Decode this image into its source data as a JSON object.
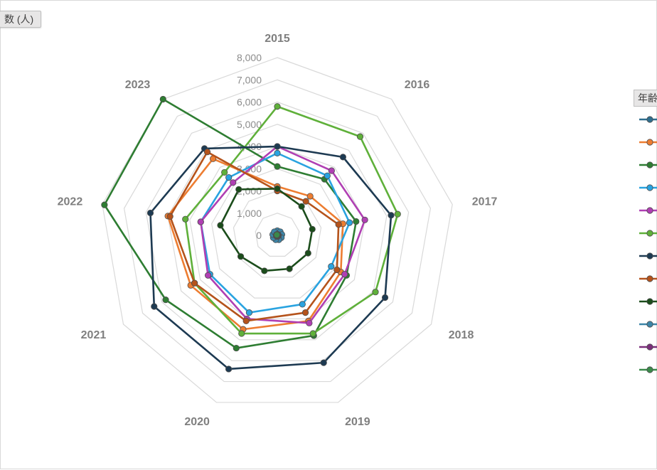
{
  "header": {
    "field_button_label": "数 (人)"
  },
  "legend": {
    "title": "年齢",
    "series_colors": [
      "#2e6e8e",
      "#ed7d31",
      "#2e7d32",
      "#29a3e0",
      "#b03fb3",
      "#5fb03a",
      "#1d3a52",
      "#b5531b",
      "#1b4d1b",
      "#3d85a8",
      "#7a2e7a",
      "#3a8a4a"
    ]
  },
  "chart_data": {
    "type": "radar",
    "categories": [
      "2015",
      "2016",
      "2017",
      "2018",
      "2019",
      "2020",
      "2021",
      "2022",
      "2023"
    ],
    "rlim": [
      0,
      8000
    ],
    "radial_ticks": [
      0,
      1000,
      2000,
      3000,
      4000,
      5000,
      6000,
      7000,
      8000
    ],
    "radial_tick_labels": [
      "0",
      "1,000",
      "2,000",
      "3,000",
      "4,000",
      "5,000",
      "6,000",
      "7,000",
      "8,000"
    ],
    "grid": true,
    "legend_position": "right",
    "series": [
      {
        "color": "#2e6e8e",
        "values": [
          150,
          150,
          150,
          150,
          150,
          150,
          150,
          150,
          150
        ]
      },
      {
        "color": "#ed7d31",
        "values": [
          2200,
          2300,
          3000,
          3300,
          4100,
          4500,
          4500,
          5000,
          4500
        ]
      },
      {
        "color": "#2e7d32",
        "values": [
          3100,
          3300,
          3600,
          3600,
          4800,
          5400,
          5800,
          7900,
          8000
        ]
      },
      {
        "color": "#29a3e0",
        "values": [
          3700,
          3500,
          3300,
          2800,
          3300,
          3700,
          3500,
          3500,
          3400
        ]
      },
      {
        "color": "#b03fb3",
        "values": [
          4000,
          3800,
          4000,
          3500,
          4200,
          4000,
          3600,
          3500,
          3100
        ]
      },
      {
        "color": "#5fb03a",
        "values": [
          5800,
          5800,
          5500,
          5100,
          4700,
          4700,
          4300,
          4200,
          3700
        ]
      },
      {
        "color": "#1d3a52",
        "values": [
          4000,
          4600,
          5200,
          5600,
          6100,
          6400,
          6400,
          5800,
          5100
        ]
      },
      {
        "color": "#b5531b",
        "values": [
          2000,
          2000,
          2800,
          3100,
          3700,
          4100,
          4300,
          4900,
          4900
        ]
      },
      {
        "color": "#1b4d1b",
        "values": [
          2100,
          1700,
          1600,
          1600,
          1600,
          1700,
          1900,
          2600,
          2700
        ]
      },
      {
        "color": "#3d85a8",
        "values": [
          210,
          210,
          210,
          210,
          210,
          210,
          210,
          210,
          210
        ]
      },
      {
        "color": "#7a2e7a",
        "values": [
          50,
          50,
          50,
          50,
          50,
          50,
          50,
          50,
          50
        ]
      },
      {
        "color": "#3a8a4a",
        "values": [
          30,
          30,
          30,
          30,
          30,
          30,
          30,
          30,
          30
        ]
      }
    ]
  }
}
